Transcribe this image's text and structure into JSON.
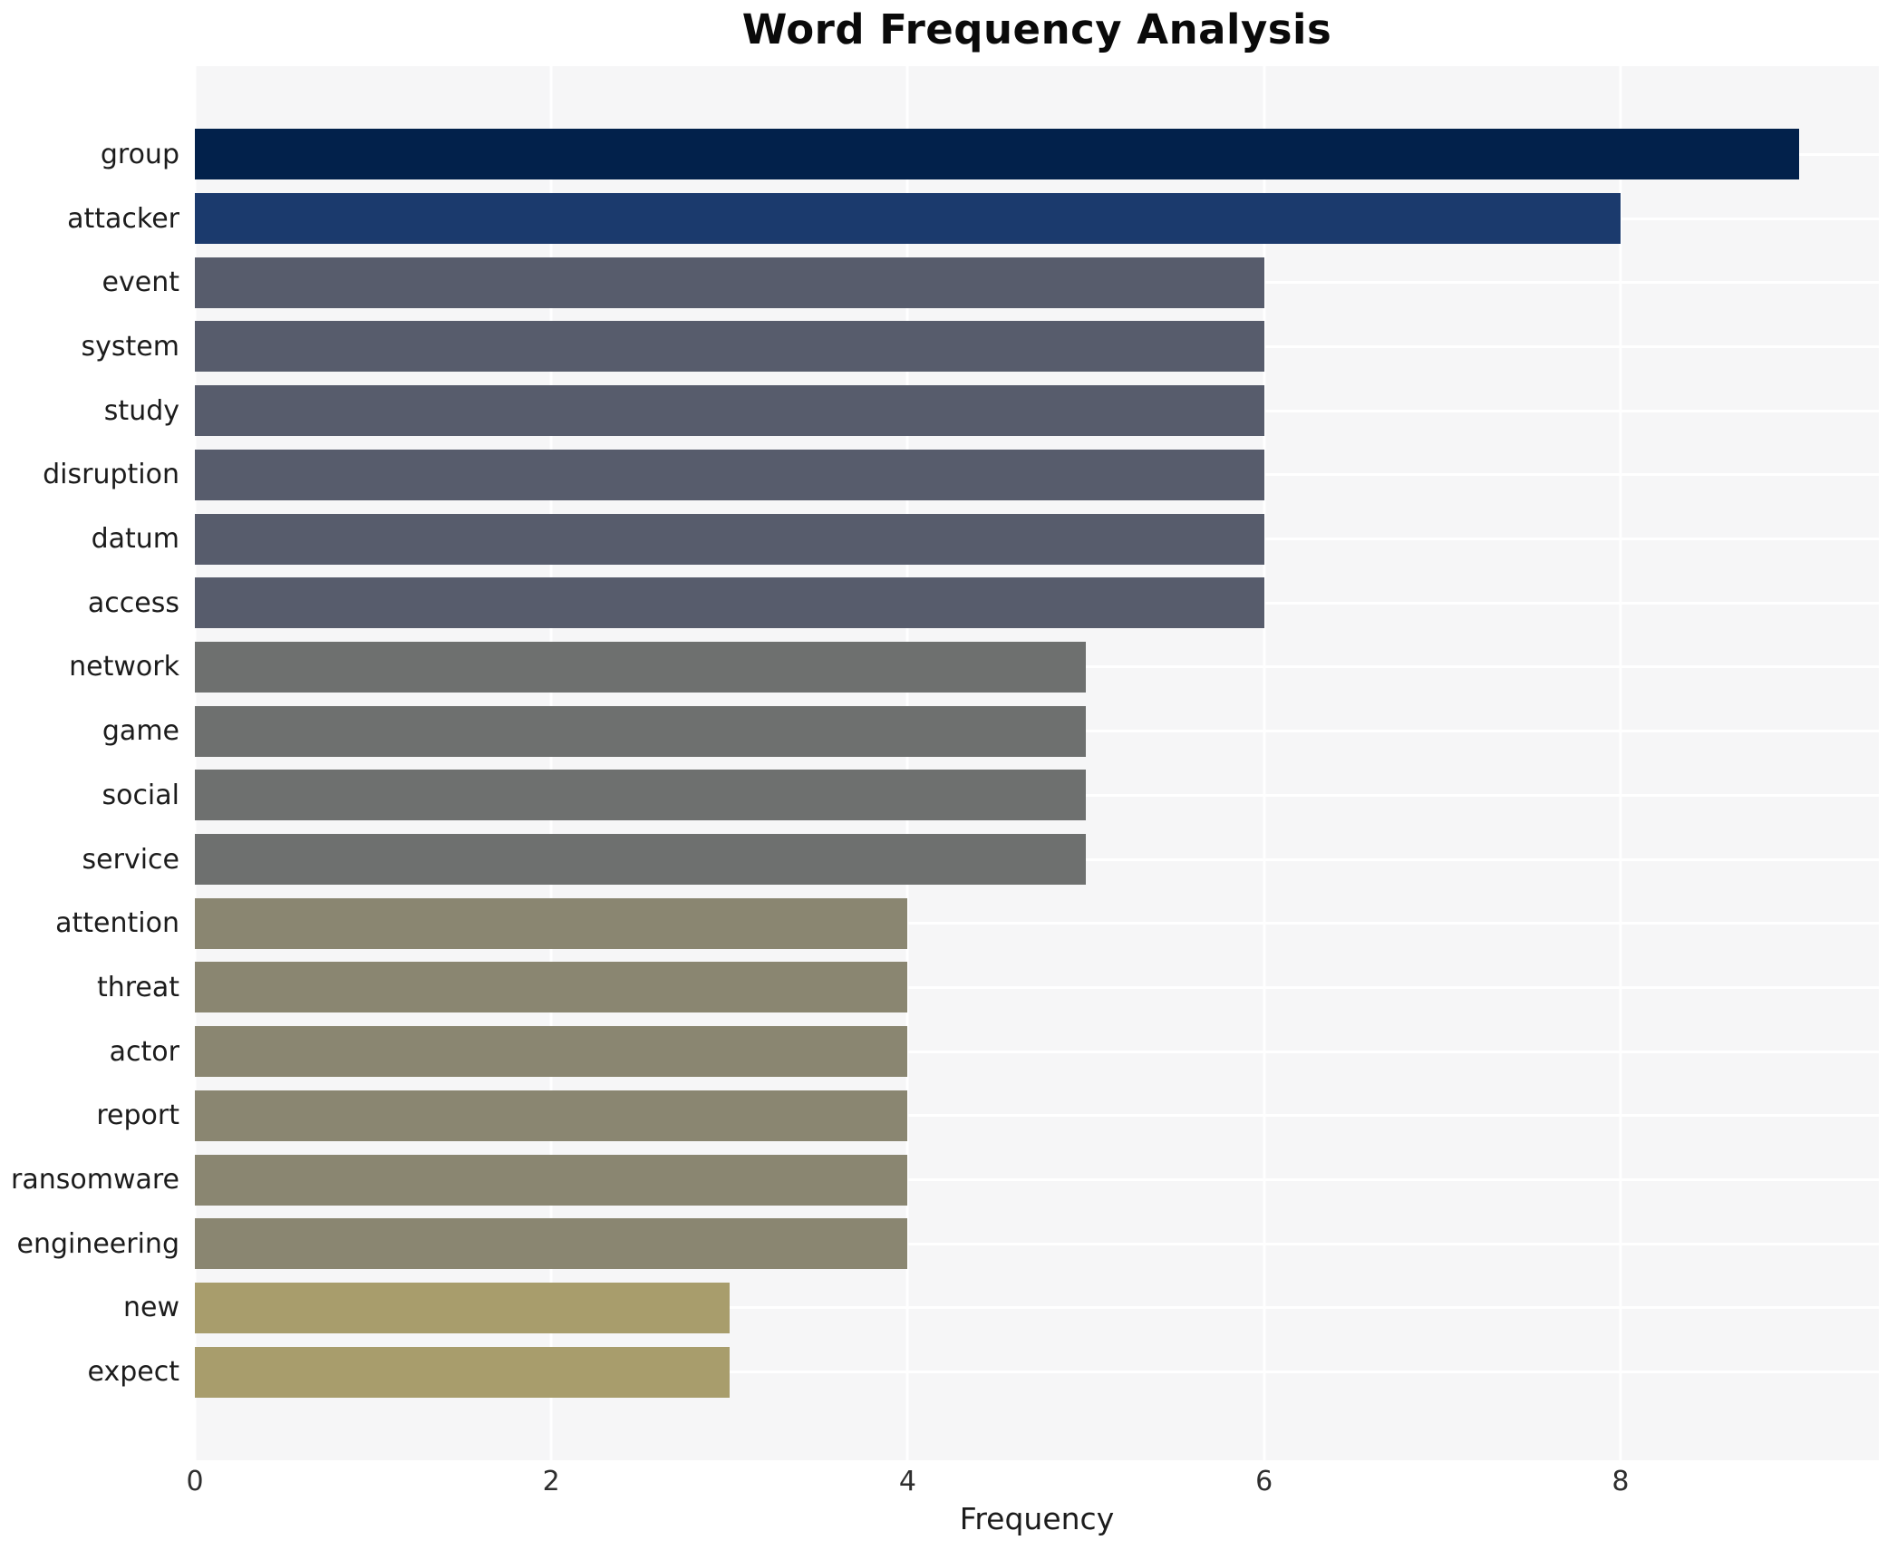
{
  "chart_data": {
    "type": "bar",
    "orientation": "horizontal",
    "title": "Word Frequency Analysis",
    "xlabel": "Frequency",
    "ylabel": "",
    "categories": [
      "group",
      "attacker",
      "event",
      "system",
      "study",
      "disruption",
      "datum",
      "access",
      "network",
      "game",
      "social",
      "service",
      "attention",
      "threat",
      "actor",
      "report",
      "ransomware",
      "engineering",
      "new",
      "expect"
    ],
    "values": [
      9,
      8,
      6,
      6,
      6,
      6,
      6,
      6,
      5,
      5,
      5,
      5,
      4,
      4,
      4,
      4,
      4,
      4,
      3,
      3
    ],
    "bar_colors": [
      "#02214b",
      "#1b3a6d",
      "#575c6c",
      "#575c6c",
      "#575c6c",
      "#575c6c",
      "#575c6c",
      "#575c6c",
      "#6e706f",
      "#6e706f",
      "#6e706f",
      "#6e706f",
      "#8a8671",
      "#8a8671",
      "#8a8671",
      "#8a8671",
      "#8a8671",
      "#8a8671",
      "#a89d6c",
      "#a89d6c"
    ],
    "xlim": [
      0,
      9.45
    ],
    "xticks": [
      0,
      2,
      4,
      6,
      8
    ],
    "grid": "on",
    "legend": "none",
    "plot_background": "#f6f6f7",
    "gridline_color": "#ffffff",
    "page_background": "#ffffff"
  }
}
